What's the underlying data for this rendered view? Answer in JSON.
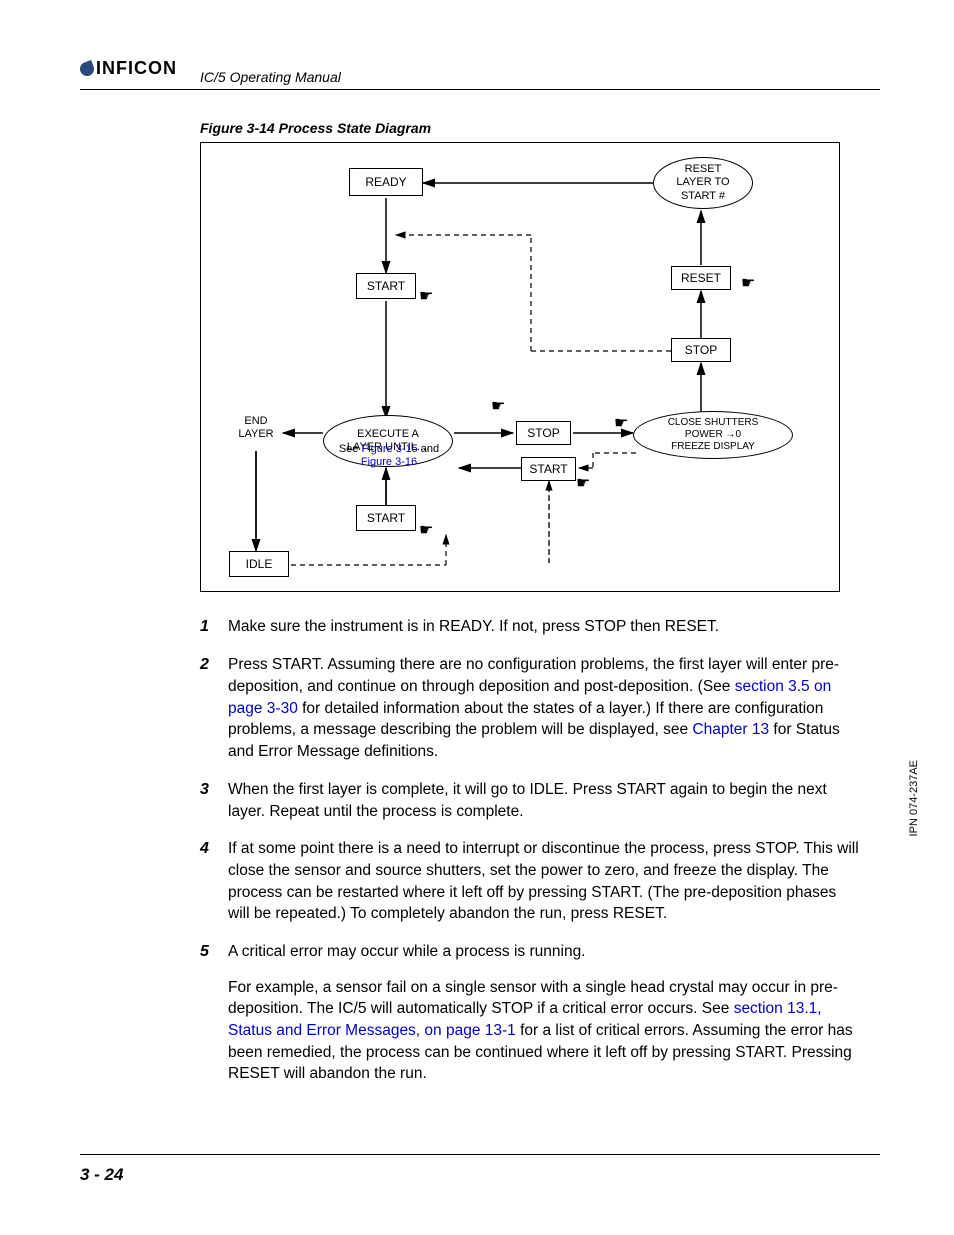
{
  "header": {
    "logo_text": "INFICON",
    "manual_title": "IC/5 Operating Manual"
  },
  "figure": {
    "caption": "Figure 3-14  Process State Diagram",
    "nodes": {
      "ready": "READY",
      "start1": "START",
      "start2": "START",
      "start3": "START",
      "stop1": "STOP",
      "stop2": "STOP",
      "reset": "RESET",
      "idle": "IDLE",
      "end_layer": "END\nLAYER",
      "reset_layer": "RESET\nLAYER TO\nSTART #",
      "close_shutters": "CLOSE SHUTTERS\nPOWER →0\nFREEZE DISPLAY",
      "execute_l1": "EXECUTE A",
      "execute_l2": "LAYER UNTIL....",
      "execute_l3a": "See ",
      "execute_l3b": "Figure 3-15",
      "execute_l3c": " and",
      "execute_l4": "Figure 3-16"
    }
  },
  "steps": [
    {
      "num": "1",
      "parts": [
        {
          "t": "Make sure the instrument is in READY. If not, press STOP then RESET."
        }
      ]
    },
    {
      "num": "2",
      "parts": [
        {
          "t": "Press START. Assuming there are no configuration problems, the first layer will enter pre-deposition, and continue on through deposition and post-deposition. (See "
        },
        {
          "t": "section 3.5 on page 3-30",
          "link": true
        },
        {
          "t": " for detailed information about the states of a layer.) If there are configuration problems, a message describing the problem will be displayed, see "
        },
        {
          "t": "Chapter 13",
          "link": true
        },
        {
          "t": " for Status and Error Message definitions."
        }
      ]
    },
    {
      "num": "3",
      "parts": [
        {
          "t": "When the first layer is complete, it will go to IDLE. Press START again to begin the next layer. Repeat until the process is complete."
        }
      ]
    },
    {
      "num": "4",
      "parts": [
        {
          "t": "If at some point there is a need to interrupt or discontinue the process, press STOP. This will close the sensor and source shutters, set the power to zero, and freeze the display. The process can be restarted where it left off by pressing START. (The pre-deposition phases will be repeated.) To completely abandon the run, press RESET."
        }
      ]
    },
    {
      "num": "5",
      "parts": [
        {
          "t": "A critical error may occur while a process is running."
        }
      ],
      "sub": [
        {
          "t": "For example, a sensor fail on a single sensor with a single head crystal may occur in pre-deposition. The IC/5 will automatically STOP if a critical error occurs. See "
        },
        {
          "t": "section 13.1, Status and Error Messages, on page 13-1",
          "link": true
        },
        {
          "t": " for a list of critical errors. Assuming the error has been remedied, the process can be continued where it left off by pressing START. Pressing RESET will abandon the run."
        }
      ]
    }
  ],
  "side_code": "IPN 074-237AE",
  "page_number": "3 - 24"
}
